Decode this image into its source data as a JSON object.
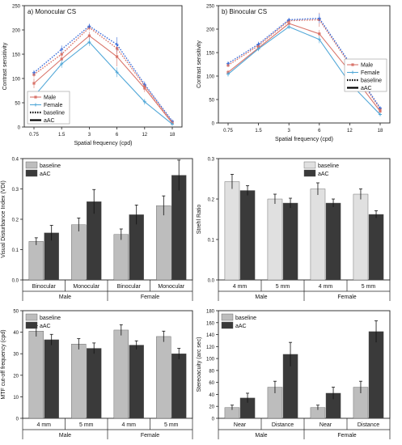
{
  "figure": {
    "axis_color": "#222222",
    "grid": false
  },
  "chart_data": [
    {
      "id": "a",
      "type": "line",
      "title": "a) Monocular CS",
      "xlabel": "Spatial frequency (cpd)",
      "ylabel": "Contrast sensitivity",
      "categories": [
        "0.75",
        "1.5",
        "3",
        "6",
        "12",
        "18"
      ],
      "ylim": [
        0,
        250
      ],
      "yticks": [
        "0",
        "50",
        "100",
        "150",
        "200",
        "250"
      ],
      "legend_position": "bottom-left",
      "legend": [
        {
          "label": "Male",
          "color": "#d9756b",
          "kind": "marker"
        },
        {
          "label": "Female",
          "color": "#52a8d8",
          "kind": "marker"
        },
        {
          "label": "baseline",
          "color": "#000000",
          "kind": "dotted"
        },
        {
          "label": "aAC",
          "color": "#000000",
          "kind": "solid"
        }
      ],
      "series": [
        {
          "name": "Male",
          "condition": "baseline",
          "color": "#d9756b",
          "dash": "dotted",
          "values": [
            108,
            150,
            205,
            162,
            85,
            10
          ],
          "errors": [
            6,
            8,
            6,
            12,
            5,
            3
          ]
        },
        {
          "name": "Female",
          "condition": "baseline",
          "color": "#3e6fd9",
          "dash": "dotted",
          "values": [
            112,
            160,
            208,
            170,
            88,
            12
          ],
          "errors": [
            5,
            8,
            5,
            15,
            6,
            3
          ]
        },
        {
          "name": "Male",
          "condition": "aAC",
          "color": "#d9756b",
          "dash": "solid",
          "values": [
            90,
            140,
            188,
            145,
            80,
            8
          ],
          "errors": [
            10,
            10,
            8,
            20,
            8,
            3
          ]
        },
        {
          "name": "Female",
          "condition": "aAC",
          "color": "#52a8d8",
          "dash": "solid",
          "values": [
            63,
            130,
            175,
            113,
            52,
            6
          ],
          "errors": [
            6,
            8,
            8,
            10,
            6,
            2
          ]
        }
      ]
    },
    {
      "id": "b",
      "type": "line",
      "title": "b) Binocular CS",
      "xlabel": "Spatial frequency (cpd)",
      "ylabel": "Contrast sensitivity",
      "categories": [
        "0.75",
        "1.5",
        "3",
        "6",
        "12",
        "18"
      ],
      "ylim": [
        0,
        250
      ],
      "yticks": [
        "0",
        "50",
        "100",
        "150",
        "200",
        "250"
      ],
      "legend_position": "top-right",
      "legend": [
        {
          "label": "Male",
          "color": "#d9756b",
          "kind": "marker"
        },
        {
          "label": "Female",
          "color": "#52a8d8",
          "kind": "marker"
        },
        {
          "label": "baseline",
          "color": "#000000",
          "kind": "dotted"
        },
        {
          "label": "aAC",
          "color": "#000000",
          "kind": "solid"
        }
      ],
      "series": [
        {
          "name": "Male",
          "condition": "baseline",
          "color": "#d9756b",
          "dash": "dotted",
          "values": [
            123,
            165,
            218,
            220,
            125,
            30
          ],
          "errors": [
            4,
            5,
            4,
            15,
            6,
            3
          ]
        },
        {
          "name": "Female",
          "condition": "baseline",
          "color": "#3e6fd9",
          "dash": "dotted",
          "values": [
            127,
            168,
            220,
            223,
            128,
            32
          ],
          "errors": [
            4,
            5,
            4,
            10,
            5,
            3
          ]
        },
        {
          "name": "Male",
          "condition": "aAC",
          "color": "#d9756b",
          "dash": "solid",
          "values": [
            108,
            160,
            212,
            190,
            110,
            25
          ],
          "errors": [
            5,
            5,
            5,
            8,
            6,
            3
          ]
        },
        {
          "name": "Female",
          "condition": "aAC",
          "color": "#52a8d8",
          "dash": "solid",
          "values": [
            104,
            158,
            205,
            178,
            85,
            18
          ],
          "errors": [
            5,
            5,
            5,
            8,
            6,
            3
          ]
        }
      ]
    },
    {
      "id": "c",
      "type": "bar",
      "ylabel": "Visual Disturbance Index (VDI)",
      "ylim": [
        0,
        0.4
      ],
      "yticks": [
        "0.0",
        "0.1",
        "0.2",
        "0.3",
        "0.4"
      ],
      "categories": [
        "Binocular",
        "Monocular",
        "Binocular",
        "Monocular"
      ],
      "groups": [
        {
          "label": "Male",
          "span": 2
        },
        {
          "label": "Female",
          "span": 2
        }
      ],
      "legend_position": "top-left",
      "series": [
        {
          "name": "baseline",
          "color": "#bdbdbd",
          "values": [
            0.127,
            0.182,
            0.15,
            0.245
          ],
          "errors": [
            0.012,
            0.022,
            0.018,
            0.032
          ]
        },
        {
          "name": "aAC",
          "color": "#3a3a3a",
          "values": [
            0.155,
            0.258,
            0.215,
            0.345
          ],
          "errors": [
            0.025,
            0.04,
            0.032,
            0.05
          ]
        }
      ]
    },
    {
      "id": "d",
      "type": "bar",
      "ylabel": "Strehl Ratio",
      "ylim": [
        0,
        0.3
      ],
      "yticks": [
        "0.0",
        "0.1",
        "0.2",
        "0.3"
      ],
      "categories": [
        "4 mm",
        "5 mm",
        "4 mm",
        "5 mm"
      ],
      "groups": [
        {
          "label": "Male",
          "span": 2
        },
        {
          "label": "Female",
          "span": 2
        }
      ],
      "legend_position": "top-right",
      "series": [
        {
          "name": "baseline",
          "color": "#e0e0e0",
          "values": [
            0.243,
            0.2,
            0.225,
            0.212
          ],
          "errors": [
            0.018,
            0.012,
            0.015,
            0.013
          ]
        },
        {
          "name": "aAC",
          "color": "#3a3a3a",
          "values": [
            0.221,
            0.19,
            0.19,
            0.162
          ],
          "errors": [
            0.012,
            0.012,
            0.01,
            0.009
          ]
        }
      ]
    },
    {
      "id": "e",
      "type": "bar",
      "ylabel": "MTF cut-off frequency (cpd)",
      "ylim": [
        0,
        50
      ],
      "yticks": [
        "0",
        "10",
        "20",
        "30",
        "40",
        "50"
      ],
      "categories": [
        "4 mm",
        "5 mm",
        "4 mm",
        "5 mm"
      ],
      "groups": [
        {
          "label": "Male",
          "span": 2
        },
        {
          "label": "Female",
          "span": 2
        }
      ],
      "legend_position": "top-left",
      "series": [
        {
          "name": "baseline",
          "color": "#bdbdbd",
          "values": [
            40.5,
            34.5,
            41.0,
            38.0
          ],
          "errors": [
            2.5,
            2.5,
            2.5,
            2.5
          ]
        },
        {
          "name": "aAC",
          "color": "#3a3a3a",
          "values": [
            36.5,
            32.5,
            34.0,
            30.0
          ],
          "errors": [
            2.5,
            2.5,
            2.0,
            2.5
          ]
        }
      ]
    },
    {
      "id": "f",
      "type": "bar",
      "ylabel": "Stereoacuity (arc sec)",
      "ylim": [
        0,
        180
      ],
      "yticks": [
        "0",
        "20",
        "40",
        "60",
        "80",
        "100",
        "120",
        "140",
        "160",
        "180"
      ],
      "categories": [
        "Near",
        "Distance",
        "Near",
        "Distance"
      ],
      "groups": [
        {
          "label": "Male",
          "span": 2
        },
        {
          "label": "Female",
          "span": 2
        }
      ],
      "legend_position": "top-left",
      "series": [
        {
          "name": "baseline",
          "color": "#bdbdbd",
          "values": [
            18,
            52,
            18,
            52
          ],
          "errors": [
            4,
            10,
            4,
            10
          ]
        },
        {
          "name": "aAC",
          "color": "#3a3a3a",
          "values": [
            34,
            107,
            42,
            145
          ],
          "errors": [
            8,
            20,
            10,
            18
          ]
        }
      ]
    }
  ]
}
